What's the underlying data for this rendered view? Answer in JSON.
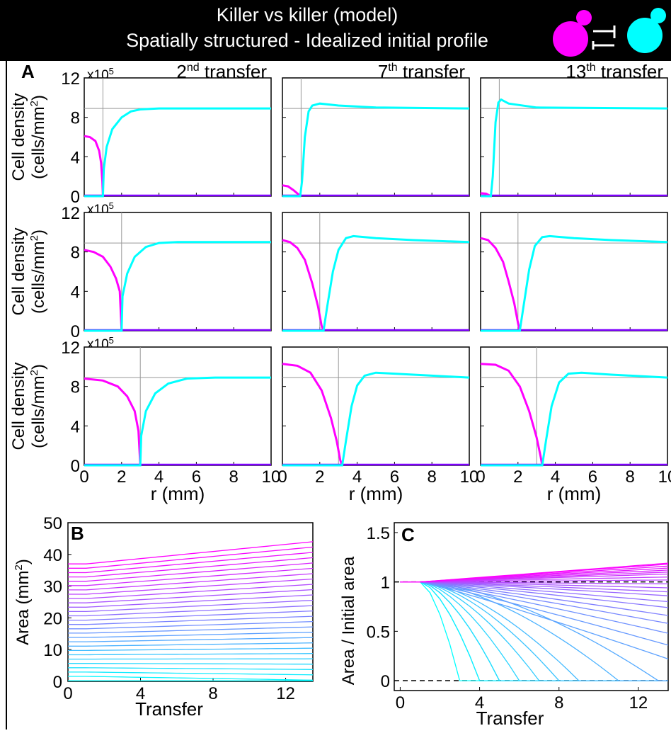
{
  "header": {
    "title_line1": "Killer vs killer (model)",
    "title_line2": "Spatially structured - Idealized initial profile"
  },
  "colors": {
    "magenta": "#ff00ff",
    "cyan": "#00ffff",
    "purple": "#7f00ff"
  },
  "panel_letters": [
    "A",
    "B",
    "C"
  ],
  "chart_data": [
    {
      "id": "A",
      "type": "line",
      "columns": [
        "2nd transfer",
        "7th transfer",
        "13th transfer"
      ],
      "column_titles": [
        {
          "base": "2",
          "sup": "nd",
          "rest": " transfer"
        },
        {
          "base": "7",
          "sup": "th",
          "rest": " transfer"
        },
        {
          "base": "13",
          "sup": "th",
          "rest": " transfer"
        }
      ],
      "xlabel": "r (mm)",
      "ylabel_line1": "Cell density",
      "ylabel_line2": "(cells/mm",
      "ylabel_sup": "2",
      "ylabel_close": ")",
      "y_multiplier": "x10",
      "y_multiplier_exp": "5",
      "xlim": [
        0,
        10
      ],
      "ylim": [
        0,
        12
      ],
      "xticks": [
        0,
        2,
        4,
        6,
        8,
        10
      ],
      "yticks": [
        0,
        4,
        8,
        12
      ],
      "grid": "reference lines only",
      "reference_y": 8.9,
      "rows": [
        {
          "panels": [
            {
              "ref_x": 1.0,
              "magenta": [
                [
                  0,
                  6.1
                ],
                [
                  0.3,
                  6.0
                ],
                [
                  0.6,
                  5.6
                ],
                [
                  0.8,
                  4.6
                ],
                [
                  0.9,
                  3.4
                ],
                [
                  0.97,
                  1.5
                ],
                [
                  1.0,
                  0
                ]
              ],
              "cyan": [
                [
                  0,
                  0
                ],
                [
                  1.0,
                  0
                ],
                [
                  1.05,
                  2.8
                ],
                [
                  1.2,
                  5.0
                ],
                [
                  1.5,
                  6.8
                ],
                [
                  2.0,
                  8.0
                ],
                [
                  2.5,
                  8.6
                ],
                [
                  3.0,
                  8.8
                ],
                [
                  4,
                  8.9
                ],
                [
                  10,
                  8.9
                ]
              ]
            },
            {
              "ref_x": 1.0,
              "magenta": [
                [
                  0,
                  1.1
                ],
                [
                  0.3,
                  1.0
                ],
                [
                  0.6,
                  0.6
                ],
                [
                  0.85,
                  0.2
                ],
                [
                  0.95,
                  0
                ]
              ],
              "cyan": [
                [
                  0,
                  0
                ],
                [
                  0.95,
                  0
                ],
                [
                  1.05,
                  1.5
                ],
                [
                  1.2,
                  6.0
                ],
                [
                  1.4,
                  8.6
                ],
                [
                  1.6,
                  9.2
                ],
                [
                  2,
                  9.4
                ],
                [
                  3,
                  9.2
                ],
                [
                  5,
                  9.0
                ],
                [
                  10,
                  8.9
                ]
              ]
            },
            {
              "ref_x": 1.0,
              "magenta": [
                [
                  0,
                  0.3
                ],
                [
                  0.3,
                  0.25
                ],
                [
                  0.45,
                  0.1
                ],
                [
                  0.55,
                  0
                ]
              ],
              "cyan": [
                [
                  0,
                  0
                ],
                [
                  0.55,
                  0
                ],
                [
                  0.65,
                  2.0
                ],
                [
                  0.8,
                  7.5
                ],
                [
                  0.95,
                  9.5
                ],
                [
                  1.1,
                  9.8
                ],
                [
                  1.5,
                  9.4
                ],
                [
                  3,
                  9.0
                ],
                [
                  10,
                  8.9
                ]
              ]
            }
          ]
        },
        {
          "panels": [
            {
              "ref_x": 2.0,
              "magenta": [
                [
                  0,
                  8.2
                ],
                [
                  0.5,
                  8.0
                ],
                [
                  1.0,
                  7.5
                ],
                [
                  1.4,
                  6.5
                ],
                [
                  1.7,
                  5.3
                ],
                [
                  1.9,
                  4.0
                ],
                [
                  2.0,
                  0
                ]
              ],
              "cyan": [
                [
                  0,
                  0
                ],
                [
                  2.0,
                  0
                ],
                [
                  2.05,
                  3.5
                ],
                [
                  2.3,
                  5.8
                ],
                [
                  2.7,
                  7.5
                ],
                [
                  3.3,
                  8.5
                ],
                [
                  4.0,
                  8.9
                ],
                [
                  5,
                  9.0
                ],
                [
                  10,
                  9.0
                ]
              ]
            },
            {
              "ref_x": 2.0,
              "magenta": [
                [
                  0,
                  9.2
                ],
                [
                  0.4,
                  9.0
                ],
                [
                  0.8,
                  8.4
                ],
                [
                  1.2,
                  7.2
                ],
                [
                  1.6,
                  4.8
                ],
                [
                  1.9,
                  2.5
                ],
                [
                  2.1,
                  0.5
                ],
                [
                  2.2,
                  0
                ]
              ],
              "cyan": [
                [
                  0,
                  0
                ],
                [
                  2.2,
                  0
                ],
                [
                  2.4,
                  2.5
                ],
                [
                  2.7,
                  6.0
                ],
                [
                  3.0,
                  8.2
                ],
                [
                  3.4,
                  9.4
                ],
                [
                  3.8,
                  9.6
                ],
                [
                  5,
                  9.4
                ],
                [
                  7,
                  9.2
                ],
                [
                  10,
                  9.0
                ]
              ]
            },
            {
              "ref_x": 2.0,
              "magenta": [
                [
                  0,
                  9.4
                ],
                [
                  0.4,
                  9.2
                ],
                [
                  0.8,
                  8.4
                ],
                [
                  1.2,
                  7.0
                ],
                [
                  1.5,
                  5.0
                ],
                [
                  1.8,
                  2.8
                ],
                [
                  2.0,
                  0.8
                ],
                [
                  2.1,
                  0
                ]
              ],
              "cyan": [
                [
                  0,
                  0
                ],
                [
                  2.1,
                  0
                ],
                [
                  2.3,
                  2.5
                ],
                [
                  2.6,
                  6.2
                ],
                [
                  2.9,
                  8.6
                ],
                [
                  3.3,
                  9.5
                ],
                [
                  3.7,
                  9.6
                ],
                [
                  5,
                  9.4
                ],
                [
                  7,
                  9.2
                ],
                [
                  10,
                  9.0
                ]
              ]
            }
          ]
        },
        {
          "panels": [
            {
              "ref_x": 3.0,
              "magenta": [
                [
                  0,
                  8.8
                ],
                [
                  1.0,
                  8.6
                ],
                [
                  1.8,
                  8.0
                ],
                [
                  2.3,
                  7.0
                ],
                [
                  2.7,
                  5.5
                ],
                [
                  2.9,
                  3.5
                ],
                [
                  3.0,
                  0
                ]
              ],
              "cyan": [
                [
                  0,
                  0
                ],
                [
                  3.0,
                  0
                ],
                [
                  3.05,
                  3.0
                ],
                [
                  3.3,
                  5.5
                ],
                [
                  3.8,
                  7.3
                ],
                [
                  4.5,
                  8.3
                ],
                [
                  5.5,
                  8.8
                ],
                [
                  7,
                  8.9
                ],
                [
                  10,
                  8.9
                ]
              ]
            },
            {
              "ref_x": 3.0,
              "magenta": [
                [
                  0,
                  10.3
                ],
                [
                  0.8,
                  10.1
                ],
                [
                  1.5,
                  9.4
                ],
                [
                  2.1,
                  7.6
                ],
                [
                  2.6,
                  4.8
                ],
                [
                  2.9,
                  2.5
                ],
                [
                  3.1,
                  0.5
                ],
                [
                  3.2,
                  0
                ]
              ],
              "cyan": [
                [
                  0,
                  0
                ],
                [
                  3.2,
                  0
                ],
                [
                  3.4,
                  2.5
                ],
                [
                  3.7,
                  6.0
                ],
                [
                  4.0,
                  8.1
                ],
                [
                  4.4,
                  9.1
                ],
                [
                  5.0,
                  9.4
                ],
                [
                  6,
                  9.3
                ],
                [
                  8,
                  9.1
                ],
                [
                  10,
                  8.9
                ]
              ]
            },
            {
              "ref_x": 3.0,
              "magenta": [
                [
                  0,
                  10.3
                ],
                [
                  0.8,
                  10.2
                ],
                [
                  1.5,
                  9.6
                ],
                [
                  2.1,
                  8.0
                ],
                [
                  2.6,
                  5.5
                ],
                [
                  3.0,
                  2.8
                ],
                [
                  3.2,
                  1.0
                ],
                [
                  3.3,
                  0
                ]
              ],
              "cyan": [
                [
                  0,
                  0
                ],
                [
                  3.3,
                  0
                ],
                [
                  3.5,
                  2.5
                ],
                [
                  3.8,
                  6.0
                ],
                [
                  4.2,
                  8.4
                ],
                [
                  4.7,
                  9.3
                ],
                [
                  5.4,
                  9.4
                ],
                [
                  7,
                  9.2
                ],
                [
                  10,
                  8.9
                ]
              ]
            }
          ]
        }
      ]
    },
    {
      "id": "B",
      "type": "line",
      "xlabel": "Transfer",
      "ylabel": "Area (mm",
      "ylabel_sup": "2",
      "ylabel_close": ")",
      "xlim": [
        0,
        13.5
      ],
      "ylim": [
        0,
        50
      ],
      "xticks": [
        0,
        4,
        8,
        12
      ],
      "yticks": [
        0,
        10,
        20,
        30,
        40,
        50
      ],
      "x": [
        0,
        13.5
      ],
      "series_count": 28,
      "initial_area_range": [
        0.2,
        37
      ],
      "color_gradient": [
        "#00ffff",
        "#ff00ff"
      ]
    },
    {
      "id": "C",
      "type": "line",
      "xlabel": "Transfer",
      "ylabel": "Area / Initial area",
      "xlim": [
        -0.3,
        13.5
      ],
      "ylim": [
        -0.1,
        1.6
      ],
      "xticks": [
        0,
        4,
        8,
        12
      ],
      "yticks": [
        0,
        0.5,
        1,
        1.5
      ],
      "ytick_labels": [
        "0",
        "0.5",
        "1",
        "1.5"
      ],
      "reference_y": [
        0,
        1
      ],
      "collapse_transfers": [
        3,
        4,
        4,
        5,
        5,
        6,
        7,
        8,
        9,
        11,
        13
      ],
      "final_ratios_declining": [
        0.22,
        0.36,
        0.48,
        0.58,
        0.66,
        0.74,
        0.8,
        0.86,
        0.9,
        0.94
      ],
      "final_ratios_growing": [
        0.98,
        1.02,
        1.05,
        1.08,
        1.1,
        1.12,
        1.14,
        1.16,
        1.18,
        1.19
      ],
      "color_gradient": [
        "#00ffff",
        "#ff00ff"
      ]
    }
  ]
}
